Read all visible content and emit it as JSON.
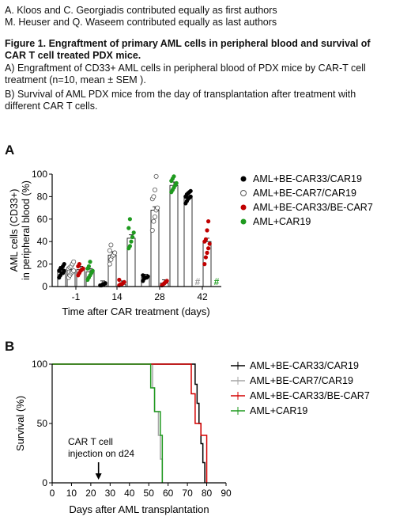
{
  "header": {
    "line1": "A. Kloos and C. Georgiadis contributed equally as first authors",
    "line2": "M. Heuser and Q. Waseem contributed equally as last authors",
    "figure_title_line1": "Figure 1. Engraftment of primary AML cells in peripheral blood and survival of",
    "figure_title_line2": "CAR T cell treated PDX mice.",
    "caption_a_line1": "A) Engraftment of CD33+ AML cells in peripheral blood of PDX mice by CAR-T cell",
    "caption_a_line2": "treatment (n=10, mean ± SEM ).",
    "caption_b_line1": "B) Survival of AML PDX mice from the day of transplantation after treatment with",
    "caption_b_line2": "different CAR T cells."
  },
  "panel_a_letter": "A",
  "panel_b_letter": "B",
  "chart_data": [
    {
      "type": "bar",
      "ylabel_line1": "AML cells (CD33+)",
      "ylabel_line2": "in peripheral blood (%)",
      "xlabel": "Time after CAR treatment (days)",
      "ylim": [
        0,
        100
      ],
      "yticks": [
        "0",
        "20",
        "40",
        "60",
        "80",
        "100"
      ],
      "categories": [
        "-1",
        "14",
        "28",
        "42"
      ],
      "series": [
        {
          "name": "AML+BE-CAR33/CAR19",
          "color": "#000000",
          "marker": "filled",
          "values": [
            15,
            2,
            8,
            80
          ],
          "points": [
            [
              8,
              10,
              12,
              12,
              14,
              14,
              16,
              16,
              18,
              20
            ],
            [
              1,
              1,
              2,
              2,
              3
            ],
            [
              5,
              7,
              8,
              8,
              9,
              10
            ],
            [
              74,
              76,
              78,
              79,
              80,
              80,
              82,
              83,
              84,
              85
            ]
          ]
        },
        {
          "name": "AML+BE-CAR7/CAR19",
          "color": "#ffffff",
          "marker": "open",
          "values": [
            15,
            28,
            68,
            0
          ],
          "points": [
            [
              8,
              10,
              12,
              13,
              14,
              16,
              17,
              18,
              20,
              22
            ],
            [
              20,
              24,
              27,
              28,
              30,
              32,
              37
            ],
            [
              50,
              58,
              62,
              68,
              70,
              78,
              80,
              86,
              98
            ],
            []
          ]
        },
        {
          "name": "AML+BE-CAR33/BE-CAR7",
          "color": "#c00000",
          "marker": "filled",
          "values": [
            15,
            2,
            3,
            40
          ],
          "points": [
            [
              10,
              12,
              14,
              15,
              16,
              18,
              20
            ],
            [
              1,
              2,
              2,
              3,
              4,
              6
            ],
            [
              1,
              2,
              3,
              4,
              5
            ],
            [
              20,
              26,
              30,
              34,
              38,
              40,
              42,
              50,
              58
            ]
          ]
        },
        {
          "name": "AML+CAR19",
          "color": "#1f9a1f",
          "marker": "filled",
          "values": [
            13,
            43,
            90,
            0
          ],
          "points": [
            [
              6,
              8,
              10,
              12,
              14,
              16,
              18,
              22
            ],
            [
              34,
              36,
              40,
              44,
              48,
              52,
              60
            ],
            [
              84,
              86,
              88,
              90,
              92,
              94,
              96,
              98
            ],
            []
          ]
        }
      ],
      "annotations": [
        {
          "category": "42",
          "series": "AML+BE-CAR7/CAR19",
          "text": "#",
          "color": "#9a9a9a"
        },
        {
          "category": "42",
          "series": "AML+CAR19",
          "text": "#",
          "color": "#1f9a1f"
        }
      ],
      "legend_position": "right"
    },
    {
      "type": "line",
      "step": true,
      "ylabel": "Survival (%)",
      "xlabel": "Days after AML transplantation",
      "xlim": [
        0,
        90
      ],
      "ylim": [
        0,
        100
      ],
      "xticks": [
        "0",
        "10",
        "20",
        "30",
        "40",
        "50",
        "60",
        "70",
        "80",
        "90"
      ],
      "yticks": [
        "0",
        "50",
        "100"
      ],
      "annotation_line1": "CAR T cell",
      "annotation_line2": "injection on d24",
      "annotation_arrow_x": 24,
      "series": [
        {
          "name": "AML+BE-CAR33/CAR19",
          "color": "#000000",
          "x": [
            0,
            73,
            74,
            75,
            76,
            77,
            78,
            79
          ],
          "y": [
            100,
            100,
            83,
            67,
            50,
            33,
            17,
            0
          ]
        },
        {
          "name": "AML+BE-CAR7/CAR19",
          "color": "#a6a6a6",
          "x": [
            0,
            51,
            52,
            53,
            55,
            56,
            57
          ],
          "y": [
            100,
            100,
            80,
            60,
            40,
            20,
            0
          ]
        },
        {
          "name": "AML+BE-CAR33/BE-CAR7",
          "color": "#d40000",
          "x": [
            0,
            71,
            72,
            74,
            77,
            80
          ],
          "y": [
            100,
            100,
            75,
            50,
            40,
            0
          ]
        },
        {
          "name": "AML+CAR19",
          "color": "#1f9a1f",
          "x": [
            0,
            50,
            51,
            53,
            56,
            57
          ],
          "y": [
            100,
            100,
            80,
            60,
            40,
            0
          ]
        }
      ],
      "legend_position": "right"
    }
  ]
}
